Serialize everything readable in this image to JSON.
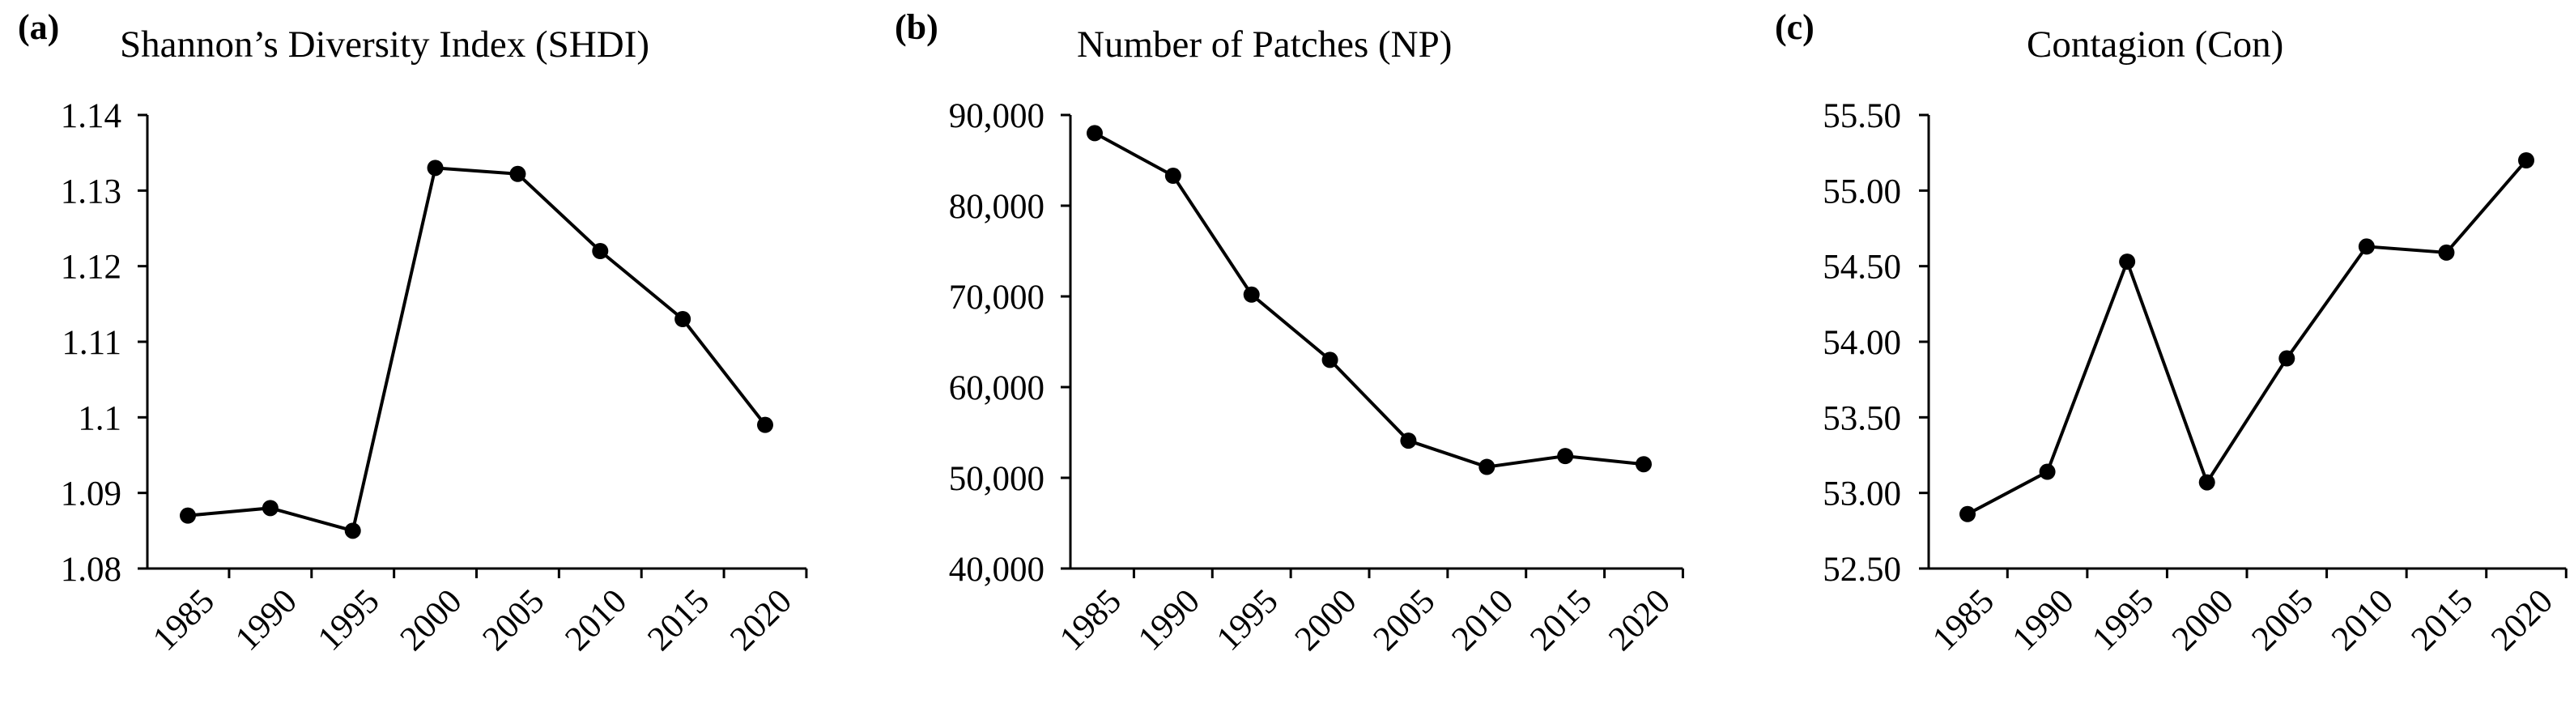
{
  "chart_data": [
    {
      "type": "line",
      "panel_label": "(a)",
      "title": "Shannon’s Diversity Index (SHDI)",
      "categories": [
        "1985",
        "1990",
        "1995",
        "2000",
        "2005",
        "2010",
        "2015",
        "2020"
      ],
      "values": [
        1.087,
        1.088,
        1.085,
        1.133,
        1.1322,
        1.122,
        1.113,
        1.099
      ],
      "ylim": [
        1.08,
        1.14
      ],
      "yticks": [
        1.08,
        1.09,
        1.1,
        1.11,
        1.12,
        1.13,
        1.14
      ],
      "ytick_labels": [
        "1.08",
        "1.09",
        "1.1",
        "1.11",
        "1.12",
        "1.13",
        "1.14"
      ],
      "grid": false,
      "color": "#000000"
    },
    {
      "type": "line",
      "panel_label": "(b)",
      "title": "Number of Patches (NP)",
      "categories": [
        "1985",
        "1990",
        "1995",
        "2000",
        "2005",
        "2010",
        "2015",
        "2020"
      ],
      "values": [
        88000,
        83300,
        70200,
        63000,
        54100,
        51200,
        52400,
        51500
      ],
      "ylim": [
        40000,
        90000
      ],
      "yticks": [
        40000,
        50000,
        60000,
        70000,
        80000,
        90000
      ],
      "ytick_labels": [
        "40,000",
        "50,000",
        "60,000",
        "70,000",
        "80,000",
        "90,000"
      ],
      "grid": false,
      "color": "#000000"
    },
    {
      "type": "line",
      "panel_label": "(c)",
      "title": "Contagion (Con)",
      "categories": [
        "1985",
        "1990",
        "1995",
        "2000",
        "2005",
        "2010",
        "2015",
        "2020"
      ],
      "values": [
        52.86,
        53.14,
        54.53,
        53.07,
        53.89,
        54.63,
        54.59,
        55.2
      ],
      "ylim": [
        52.5,
        55.5
      ],
      "yticks": [
        52.5,
        53.0,
        53.5,
        54.0,
        54.5,
        55.0,
        55.5
      ],
      "ytick_labels": [
        "52.50",
        "53.00",
        "53.50",
        "54.00",
        "54.50",
        "55.00",
        "55.50"
      ],
      "grid": false,
      "color": "#000000"
    }
  ]
}
